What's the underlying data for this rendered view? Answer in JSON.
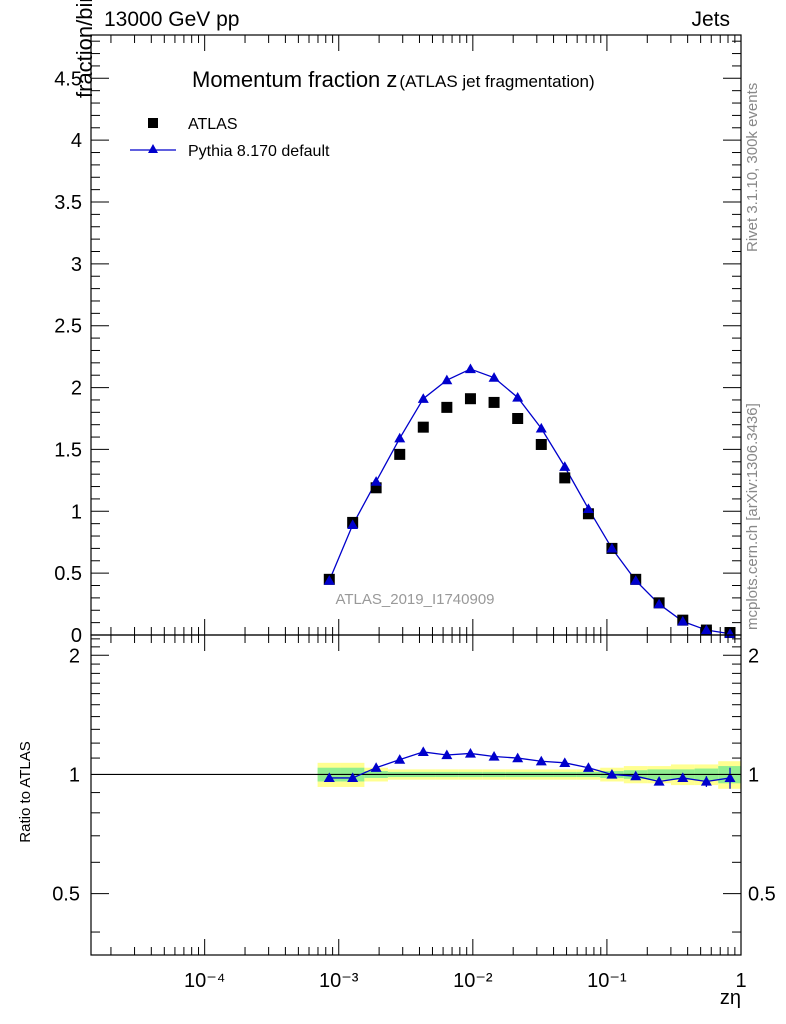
{
  "header": {
    "left": "13000 GeV pp",
    "right": "Jets"
  },
  "side_labels": {
    "rivet": "Rivet 3.1.10,  300k events",
    "mcplots": "mcplots.cern.ch [arXiv:1306.3436]"
  },
  "colors": {
    "mc": "#0000cc",
    "data": "#000000",
    "band_inner": "#90ee90",
    "band_outer": "#ffff90",
    "watermark": "#999999"
  },
  "chart_data": [
    {
      "panel": "main",
      "type": "scatter",
      "title_main": "Momentum fraction z",
      "title_sub": "(ATLAS jet fragmentation)",
      "ylabel": "fraction/bin",
      "xlabel": "zη",
      "xscale": "log",
      "xlim": [
        1.42e-05,
        1
      ],
      "ylim": [
        0,
        4.85
      ],
      "yticks": [
        "0",
        "0.5",
        "1",
        "1.5",
        "2",
        "2.5",
        "3",
        "3.5",
        "4",
        "4.5"
      ],
      "ytick_values": [
        0,
        0.5,
        1,
        1.5,
        2,
        2.5,
        3,
        3.5,
        4,
        4.5
      ],
      "watermark": "ATLAS_2019_I1740909",
      "legend": [
        "ATLAS",
        "Pythia 8.170 default"
      ],
      "x": [
        0.00085,
        0.00127,
        0.0019,
        0.00285,
        0.00427,
        0.0064,
        0.0096,
        0.0144,
        0.0216,
        0.0324,
        0.0485,
        0.0728,
        0.109,
        0.164,
        0.245,
        0.368,
        0.552,
        0.828
      ],
      "series": [
        {
          "name": "ATLAS",
          "marker": "square",
          "values": [
            0.45,
            0.91,
            1.19,
            1.46,
            1.68,
            1.84,
            1.91,
            1.88,
            1.75,
            1.54,
            1.27,
            0.98,
            0.7,
            0.45,
            0.26,
            0.12,
            0.04,
            0.02
          ]
        },
        {
          "name": "Pythia 8.170 default",
          "marker": "triangle",
          "values": [
            0.44,
            0.89,
            1.24,
            1.59,
            1.91,
            2.06,
            2.15,
            2.08,
            1.92,
            1.67,
            1.36,
            1.02,
            0.7,
            0.44,
            0.25,
            0.11,
            0.04,
            0.01
          ]
        }
      ]
    },
    {
      "panel": "ratio",
      "type": "line",
      "ylabel": "Ratio to ATLAS",
      "xscale": "log",
      "xlim": [
        1.42e-05,
        1
      ],
      "ylim": [
        0.35,
        2.25
      ],
      "yticks": [
        "0.5",
        "1",
        "2"
      ],
      "ytick_values": [
        0.5,
        1,
        2
      ],
      "xticks": [
        "10⁻⁴",
        "10⁻³",
        "10⁻²",
        "10⁻¹",
        "1"
      ],
      "xtick_values": [
        0.0001,
        0.001,
        0.01,
        0.1,
        1
      ],
      "series": [
        {
          "name": "Pythia 8.170 default",
          "values": [
            0.98,
            0.98,
            1.04,
            1.09,
            1.14,
            1.12,
            1.13,
            1.11,
            1.1,
            1.08,
            1.07,
            1.04,
            1.0,
            0.99,
            0.96,
            0.98,
            0.96,
            0.98
          ]
        }
      ],
      "band_outer": [
        0.07,
        0.07,
        0.04,
        0.03,
        0.03,
        0.03,
        0.03,
        0.03,
        0.03,
        0.03,
        0.03,
        0.03,
        0.04,
        0.05,
        0.05,
        0.06,
        0.06,
        0.08
      ],
      "band_inner": [
        0.04,
        0.04,
        0.02,
        0.015,
        0.015,
        0.015,
        0.015,
        0.015,
        0.015,
        0.015,
        0.015,
        0.015,
        0.02,
        0.025,
        0.03,
        0.03,
        0.035,
        0.05
      ],
      "errors": [
        0,
        0,
        0,
        0,
        0,
        0,
        0,
        0,
        0,
        0,
        0,
        0,
        0,
        0,
        0,
        0.02,
        0.03,
        0.06
      ]
    }
  ]
}
